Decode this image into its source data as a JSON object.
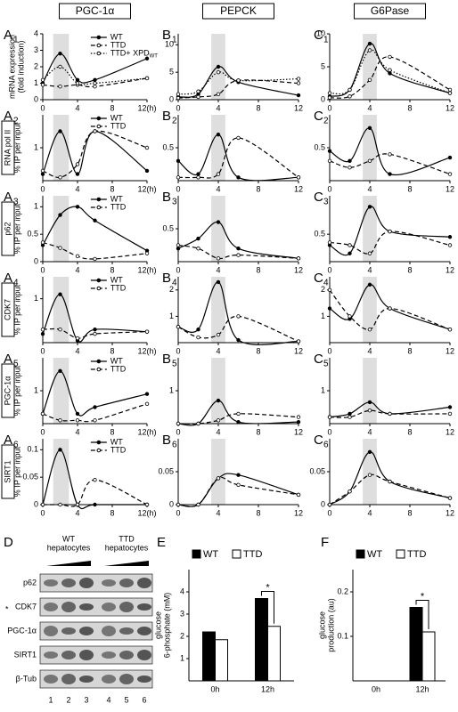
{
  "chart_data": [
    {
      "type": "line",
      "panel": "A",
      "panel_sub": "1",
      "header": "PGC-1α",
      "ylabel": [
        "mRNA expression",
        "(fold induction)"
      ],
      "x": [
        0,
        2,
        4,
        6,
        12
      ],
      "xlim": [
        0,
        12
      ],
      "xticks": [
        0,
        4,
        8,
        {
          "value": 12,
          "label": "12(h)"
        }
      ],
      "ylim": [
        0,
        4
      ],
      "yticks": [
        0,
        1,
        2,
        3,
        4
      ],
      "highlight": [
        1.2,
        3.0
      ],
      "series": [
        {
          "name": "WT",
          "color": "#000000",
          "style": "solid",
          "marker": "filled",
          "values": [
            1.0,
            2.8,
            1.2,
            1.2,
            2.5
          ]
        },
        {
          "name": "TTD",
          "color": "#000000",
          "style": "dashed",
          "marker": "open",
          "values": [
            0.9,
            0.8,
            0.9,
            0.8,
            1.3
          ]
        },
        {
          "name": "TTD+ XPD",
          "name_sub": "WT",
          "color": "#000000",
          "style": "dotted",
          "marker": "open",
          "values": [
            1.2,
            2.0,
            1.0,
            1.0,
            1.3
          ]
        }
      ]
    },
    {
      "type": "line",
      "panel": "A",
      "panel_sub": "2",
      "row_label": "RNA pol II",
      "ylabel": [
        "% IP per input"
      ],
      "x": [
        0,
        2,
        4,
        6,
        12
      ],
      "xlim": [
        0,
        12
      ],
      "xticks": [
        0,
        4,
        8,
        {
          "value": 12,
          "label": "12(h)"
        }
      ],
      "ylim": [
        0,
        2
      ],
      "yticks": [
        1
      ],
      "highlight": [
        1.2,
        3.0
      ],
      "series": [
        {
          "name": "WT",
          "color": "#000000",
          "style": "solid",
          "marker": "filled",
          "values": [
            0.2,
            1.5,
            0.2,
            1.5,
            0.3
          ]
        },
        {
          "name": "TTD",
          "color": "#000000",
          "style": "dashed",
          "marker": "open",
          "values": [
            0.3,
            0.1,
            0.5,
            1.5,
            1.0
          ]
        }
      ]
    },
    {
      "type": "line",
      "panel": "A",
      "panel_sub": "3",
      "row_label": "p62",
      "ylabel": [
        "% IP per input"
      ],
      "x": [
        0,
        2,
        4,
        6,
        12
      ],
      "xlim": [
        0,
        12
      ],
      "xticks": [
        0,
        4,
        8,
        {
          "value": 12,
          "label": "12(h)"
        }
      ],
      "ylim": [
        0,
        1.2
      ],
      "yticks": [
        0,
        0.5,
        1
      ],
      "highlight": [
        1.2,
        3.0
      ],
      "series": [
        {
          "name": "WT",
          "color": "#000000",
          "style": "solid",
          "marker": "filled",
          "values": [
            0.3,
            0.85,
            1.0,
            0.75,
            0.2
          ]
        },
        {
          "name": "TTD",
          "color": "#000000",
          "style": "dashed",
          "marker": "open",
          "values": [
            0.35,
            0.25,
            0.1,
            0.05,
            0.15
          ]
        }
      ]
    },
    {
      "type": "line",
      "panel": "A",
      "panel_sub": "4",
      "row_label": "CDK7",
      "ylabel": [
        "% IP per input"
      ],
      "x": [
        0,
        2,
        4,
        6,
        12
      ],
      "xlim": [
        0,
        12
      ],
      "xticks": [
        0,
        4,
        8,
        {
          "value": 12,
          "label": "12(h)"
        }
      ],
      "ylim": [
        0,
        1.5
      ],
      "yticks": [
        1
      ],
      "highlight": [
        1.2,
        3.0
      ],
      "series": [
        {
          "name": "WT",
          "color": "#000000",
          "style": "solid",
          "marker": "filled",
          "values": [
            0.2,
            1.1,
            0.05,
            0.3,
            0.25
          ]
        },
        {
          "name": "TTD",
          "color": "#000000",
          "style": "dashed",
          "marker": "open",
          "values": [
            0.3,
            0.3,
            0.1,
            0.2,
            0.25
          ]
        }
      ]
    },
    {
      "type": "line",
      "panel": "A",
      "panel_sub": "5",
      "row_label": "PGC-1α",
      "ylabel": [
        "% IP per input"
      ],
      "x": [
        0,
        2,
        4,
        6,
        12
      ],
      "xlim": [
        0,
        12
      ],
      "xticks": [
        0,
        4,
        8,
        {
          "value": 12,
          "label": "12(h)"
        }
      ],
      "ylim": [
        0,
        2
      ],
      "yticks": [
        1
      ],
      "highlight": [
        1.2,
        3.0
      ],
      "series": [
        {
          "name": "WT",
          "color": "#000000",
          "style": "solid",
          "marker": "filled",
          "values": [
            0.3,
            1.6,
            0.3,
            0.5,
            0.9
          ]
        },
        {
          "name": "TTD",
          "color": "#000000",
          "style": "dashed",
          "marker": "open",
          "values": [
            0.3,
            0.1,
            0.1,
            0.1,
            0.6
          ]
        }
      ]
    },
    {
      "type": "line",
      "panel": "A",
      "panel_sub": "6",
      "row_label": "SIRT1",
      "ylabel": [
        "% IP per input"
      ],
      "x": [
        0,
        2,
        4,
        6,
        12
      ],
      "xlim": [
        0,
        12
      ],
      "xticks": [
        0,
        4,
        8,
        {
          "value": 12,
          "label": "12(h)"
        }
      ],
      "ylim": [
        0,
        0.12
      ],
      "yticks": [
        0,
        0.05,
        0.1
      ],
      "highlight": [
        1.2,
        3.0
      ],
      "series": [
        {
          "name": "WT",
          "color": "#000000",
          "style": "solid",
          "marker": "filled",
          "values": [
            0,
            0.1,
            0,
            0,
            0
          ]
        },
        {
          "name": "TTD",
          "color": "#000000",
          "style": "dashed",
          "marker": "open",
          "values": [
            0,
            0,
            0,
            0.045,
            0
          ]
        }
      ]
    },
    {
      "type": "line",
      "panel": "B",
      "panel_sub": "1",
      "header": "PEPCK",
      "x": [
        0,
        2,
        4,
        6,
        12
      ],
      "xlim": [
        0,
        12
      ],
      "xticks": [
        0,
        4,
        8,
        12
      ],
      "ylim": [
        0,
        12
      ],
      "yticks": [
        0,
        5,
        10
      ],
      "highlight": [
        3.3,
        4.7
      ],
      "series": [
        {
          "color": "#000000",
          "style": "solid",
          "marker": "filled",
          "values": [
            0.5,
            1.0,
            6,
            3.2,
            0.8
          ]
        },
        {
          "color": "#000000",
          "style": "dashed",
          "marker": "open",
          "values": [
            0.3,
            0.5,
            1.0,
            3.5,
            3.0
          ]
        },
        {
          "color": "#000000",
          "style": "dotted",
          "marker": "open",
          "values": [
            1,
            1.5,
            5,
            3.5,
            3.8
          ]
        }
      ]
    },
    {
      "type": "line",
      "panel": "B",
      "panel_sub": "2",
      "x": [
        0,
        2,
        4,
        6,
        12
      ],
      "xlim": [
        0,
        12
      ],
      "xticks": [
        0,
        4,
        8,
        12
      ],
      "ylim": [
        0,
        1
      ],
      "yticks": [
        0.5
      ],
      "highlight": [
        3.3,
        4.7
      ],
      "series": [
        {
          "color": "#000000",
          "style": "solid",
          "marker": "filled",
          "values": [
            0.3,
            0.1,
            0.7,
            0.05,
            0.05
          ]
        },
        {
          "color": "#000000",
          "style": "dashed",
          "marker": "open",
          "values": [
            0.05,
            0.05,
            0.1,
            0.65,
            0.05
          ]
        }
      ]
    },
    {
      "type": "line",
      "panel": "B",
      "panel_sub": "3",
      "x": [
        0,
        2,
        4,
        6,
        12
      ],
      "xlim": [
        0,
        12
      ],
      "xticks": [
        0,
        4,
        8,
        12
      ],
      "ylim": [
        0,
        1
      ],
      "yticks": [
        0.5
      ],
      "highlight": [
        3.3,
        4.7
      ],
      "series": [
        {
          "color": "#000000",
          "style": "solid",
          "marker": "filled",
          "values": [
            0.2,
            0.35,
            0.6,
            0.2,
            0.05
          ]
        },
        {
          "color": "#000000",
          "style": "dashed",
          "marker": "open",
          "values": [
            0.25,
            0.2,
            0.05,
            0.1,
            0.05
          ]
        }
      ]
    },
    {
      "type": "line",
      "panel": "B",
      "panel_sub": "4",
      "x": [
        0,
        2,
        4,
        6,
        12
      ],
      "xlim": [
        0,
        12
      ],
      "xticks": [
        0,
        4,
        8,
        12
      ],
      "ylim": [
        0,
        2.5
      ],
      "yticks": [
        1,
        2
      ],
      "highlight": [
        3.3,
        4.7
      ],
      "series": [
        {
          "color": "#000000",
          "style": "solid",
          "marker": "filled",
          "values": [
            0.6,
            0.5,
            2.3,
            0.1,
            0.05
          ]
        },
        {
          "color": "#000000",
          "style": "dashed",
          "marker": "open",
          "values": [
            0.6,
            0.2,
            0.3,
            1.0,
            0.05
          ]
        }
      ]
    },
    {
      "type": "line",
      "panel": "B",
      "panel_sub": "5",
      "x": [
        0,
        2,
        4,
        6,
        12
      ],
      "xlim": [
        0,
        12
      ],
      "xticks": [
        0,
        4,
        8,
        12
      ],
      "ylim": [
        0,
        2
      ],
      "yticks": [
        1
      ],
      "highlight": [
        3.3,
        4.7
      ],
      "series": [
        {
          "color": "#000000",
          "style": "solid",
          "marker": "filled",
          "values": [
            0,
            0,
            0.7,
            0.05,
            0.05
          ]
        },
        {
          "color": "#000000",
          "style": "dashed",
          "marker": "open",
          "values": [
            0,
            0,
            0.1,
            0.3,
            0.2
          ]
        }
      ]
    },
    {
      "type": "line",
      "panel": "B",
      "panel_sub": "6",
      "x": [
        0,
        2,
        4,
        6,
        12
      ],
      "xlim": [
        0,
        12
      ],
      "xticks": [
        0,
        4,
        8,
        12
      ],
      "ylim": [
        0,
        0.1
      ],
      "yticks": [
        0,
        0.05
      ],
      "highlight": [
        3.3,
        4.7
      ],
      "series": [
        {
          "color": "#000000",
          "style": "solid",
          "marker": "filled",
          "values": [
            0,
            0,
            0.04,
            0.045,
            0.015
          ]
        },
        {
          "color": "#000000",
          "style": "dashed",
          "marker": "open",
          "values": [
            0,
            0,
            0.04,
            0.03,
            0.015
          ]
        }
      ]
    },
    {
      "type": "line",
      "panel": "C",
      "panel_sub": "1",
      "header": "G6Pase",
      "x": [
        0,
        2,
        4,
        6,
        12
      ],
      "xlim": [
        0,
        12
      ],
      "xticks": [
        0,
        4,
        8,
        12
      ],
      "ylim": [
        0,
        10
      ],
      "yticks": [
        0,
        5,
        10
      ],
      "highlight": [
        3.3,
        4.7
      ],
      "series": [
        {
          "color": "#000000",
          "style": "solid",
          "marker": "filled",
          "values": [
            0.5,
            1.5,
            8.5,
            4,
            1
          ]
        },
        {
          "color": "#000000",
          "style": "dashed",
          "marker": "open",
          "values": [
            0.3,
            0.5,
            3,
            6.5,
            1.5
          ]
        },
        {
          "color": "#000000",
          "style": "dotted",
          "marker": "open",
          "values": [
            1,
            1.5,
            7.5,
            4.5,
            1.0
          ]
        }
      ]
    },
    {
      "type": "line",
      "panel": "C",
      "panel_sub": "2",
      "x": [
        0,
        2,
        4,
        6,
        12
      ],
      "xlim": [
        0,
        12
      ],
      "xticks": [
        0,
        4,
        8,
        12
      ],
      "ylim": [
        0,
        1
      ],
      "yticks": [
        0.5
      ],
      "highlight": [
        3.3,
        4.7
      ],
      "series": [
        {
          "color": "#000000",
          "style": "solid",
          "marker": "filled",
          "values": [
            0.45,
            0.3,
            0.8,
            0.1,
            0.35
          ]
        },
        {
          "color": "#000000",
          "style": "dashed",
          "marker": "open",
          "values": [
            0.3,
            0.2,
            0.3,
            0.4,
            0.1
          ]
        }
      ]
    },
    {
      "type": "line",
      "panel": "C",
      "panel_sub": "3",
      "x": [
        0,
        2,
        4,
        6,
        12
      ],
      "xlim": [
        0,
        12
      ],
      "xticks": [
        0,
        4,
        8,
        12
      ],
      "ylim": [
        0,
        1.2
      ],
      "yticks": [
        0.5
      ],
      "highlight": [
        3.3,
        4.7
      ],
      "series": [
        {
          "color": "#000000",
          "style": "solid",
          "marker": "filled",
          "values": [
            0.3,
            0.15,
            1.0,
            0.55,
            0.45
          ]
        },
        {
          "color": "#000000",
          "style": "dashed",
          "marker": "open",
          "values": [
            0.35,
            0.3,
            0.15,
            0.55,
            0.3
          ]
        }
      ]
    },
    {
      "type": "line",
      "panel": "C",
      "panel_sub": "4",
      "x": [
        0,
        2,
        4,
        6,
        12
      ],
      "xlim": [
        0,
        12
      ],
      "xticks": [
        0,
        4,
        8,
        12
      ],
      "ylim": [
        0,
        2.5
      ],
      "yticks": [
        1,
        2
      ],
      "highlight": [
        3.3,
        4.7
      ],
      "series": [
        {
          "color": "#000000",
          "style": "solid",
          "marker": "filled",
          "values": [
            1.3,
            0.9,
            2.2,
            1.3,
            0.5
          ]
        },
        {
          "color": "#000000",
          "style": "dashed",
          "marker": "open",
          "values": [
            2.0,
            1.0,
            0.5,
            1.3,
            0.5
          ]
        }
      ]
    },
    {
      "type": "line",
      "panel": "C",
      "panel_sub": "5",
      "x": [
        0,
        2,
        4,
        6,
        12
      ],
      "xlim": [
        0,
        12
      ],
      "xticks": [
        0,
        4,
        8,
        12
      ],
      "ylim": [
        0,
        2
      ],
      "yticks": [
        1
      ],
      "highlight": [
        3.3,
        4.7
      ],
      "series": [
        {
          "color": "#000000",
          "style": "solid",
          "marker": "filled",
          "values": [
            0.2,
            0.3,
            0.65,
            0.3,
            0.5
          ]
        },
        {
          "color": "#000000",
          "style": "dashed",
          "marker": "open",
          "values": [
            0.2,
            0.2,
            0.4,
            0.3,
            0.3
          ]
        }
      ]
    },
    {
      "type": "line",
      "panel": "C",
      "panel_sub": "6",
      "x": [
        0,
        2,
        4,
        6,
        12
      ],
      "xlim": [
        0,
        12
      ],
      "xticks": [
        0,
        4,
        8,
        12
      ],
      "ylim": [
        0,
        0.1
      ],
      "yticks": [
        0,
        0.05
      ],
      "highlight": [
        3.3,
        4.7
      ],
      "series": [
        {
          "color": "#000000",
          "style": "solid",
          "marker": "filled",
          "values": [
            0,
            0.02,
            0.08,
            0.035,
            0.01
          ]
        },
        {
          "color": "#000000",
          "style": "dashed",
          "marker": "open",
          "values": [
            0,
            0.02,
            0.045,
            0.035,
            0.01
          ]
        }
      ]
    },
    {
      "type": "bar",
      "panel": "E",
      "ylabel": [
        "glucose",
        "6-phosphate (mM)"
      ],
      "categories": [
        "0h",
        "12h"
      ],
      "ylim": [
        0,
        5
      ],
      "yticks": [
        1,
        2,
        3,
        4
      ],
      "annotation": "*",
      "series": [
        {
          "name": "WT",
          "color": "#000000",
          "values": [
            2.2,
            3.7
          ]
        },
        {
          "name": "TTD",
          "color": "#ffffff",
          "values": [
            1.85,
            2.45
          ]
        }
      ]
    },
    {
      "type": "bar",
      "panel": "F",
      "ylabel": [
        "glucose",
        "production (au)"
      ],
      "categories": [
        "0h",
        "12h"
      ],
      "ylim": [
        0,
        0.25
      ],
      "yticks": [
        0.1,
        0.2
      ],
      "annotation": "*",
      "series": [
        {
          "name": "WT",
          "color": "#000000",
          "values": [
            0,
            0.165
          ]
        },
        {
          "name": "TTD",
          "color": "#ffffff",
          "values": [
            0,
            0.11
          ]
        }
      ]
    }
  ],
  "blot": {
    "panel": "D",
    "groups": [
      [
        "WT",
        "hepatocytes"
      ],
      [
        "TTD",
        "hepatocytes"
      ]
    ],
    "rows": [
      "p62",
      "CDK7",
      "PGC-1α",
      "SIRT1",
      "β-Tub"
    ],
    "row_note": "*",
    "lanes": [
      "1",
      "2",
      "3",
      "4",
      "5",
      "6"
    ]
  }
}
